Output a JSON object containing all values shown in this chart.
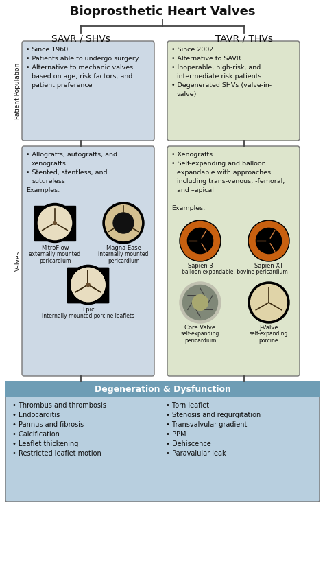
{
  "title": "Bioprosthetic Heart Valves",
  "col1_header": "SAVR / SHVs",
  "col2_header": "TAVR / THVs",
  "row_label1": "Patient Population",
  "row_label2": "Valves",
  "bg_color": "#ffffff",
  "box1_color": "#cdd9e5",
  "box2_color": "#dde5cc",
  "box3_color": "#cdd9e5",
  "box4_color": "#dde5cc",
  "bottom_box_color": "#b8cfdf",
  "bottom_header_bg": "#6e9db5",
  "bottom_header_text": "#ffffff",
  "title_fontsize": 13,
  "col_header_fontsize": 10,
  "body_fontsize": 7,
  "label_fontsize": 6.5,
  "bottom_title": "Degeneration & Dysfunction",
  "box1_bullets": [
    "Since 1960",
    "Patients able to undergo surgery",
    "Alternative to mechanic valves\nbased on age, risk factors, and\npatient preference"
  ],
  "box2_bullets": [
    "Since 2002",
    "Alternative to SAVR",
    "Inoperable, high-risk, and\nintermediate risk patients",
    "Degenerated SHVs (valve-in-\nvalve)"
  ],
  "box3_bullets": [
    "Allografts, autografts, and\nxenografts",
    "Stented, stentless, and\nsutureless"
  ],
  "box4_bullets": [
    "Xenografts",
    "Self-expanding and balloon\nexpandable with approaches\nincluding trans-venous, -femoral,\nand –apical"
  ],
  "bottom_left": [
    "Thrombus and thrombosis",
    "Endocarditis",
    "Pannus and fibrosis",
    "Calcification",
    "Leaflet thickening",
    "Restricted leaflet motion"
  ],
  "bottom_right": [
    "Torn leaflet",
    "Stenosis and regurgitation",
    "Transvalvular gradient",
    "PPM",
    "Dehiscence",
    "Paravalular leak"
  ],
  "savr_img1_name": "MitroFlow",
  "savr_img1_sub": "externally mounted\npericardium",
  "savr_img2_name": "Magna Ease",
  "savr_img2_sub": "internally mounted\npericardium",
  "savr_img3_name": "Epic",
  "savr_img3_sub": "internally mounted porcine leaflets",
  "tavr_img1_name": "Sapien 3",
  "tavr_img2_name": "Sapien XT",
  "tavr_img12_sub": "balloon expandable, bovine pericardium",
  "tavr_img3_name": "Core Valve",
  "tavr_img3_sub": "self-expanding\npericardium",
  "tavr_img4_name": "J-Valve",
  "tavr_img4_sub": "self-expanding\nporcine"
}
